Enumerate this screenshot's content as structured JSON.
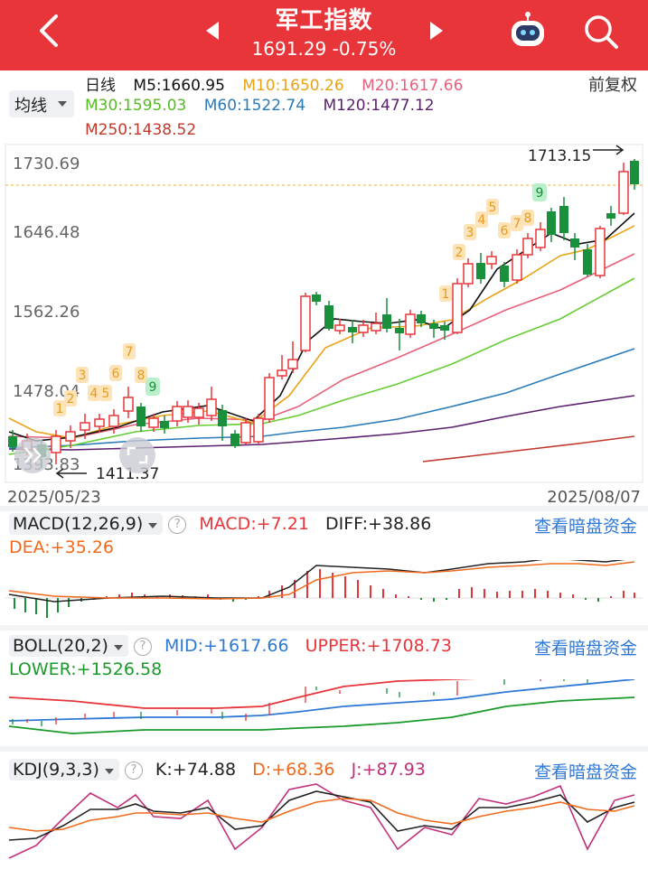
{
  "header": {
    "title": "军工指数",
    "price": "1691.29",
    "change_pct": "-0.75%"
  },
  "ma": {
    "period_label": "日线",
    "type_label": "均线",
    "adjust_label": "前复权",
    "m5": "M5:1660.95",
    "m10": "M10:1650.26",
    "m20": "M20:1617.66",
    "m30": "M30:1595.03",
    "m60": "M60:1522.74",
    "m120": "M120:1477.12",
    "m250": "M250:1438.52",
    "colors": {
      "m5": "#111111",
      "m10": "#e8a317",
      "m20": "#e8607a",
      "m30": "#66cc33",
      "m60": "#2b7bb9",
      "m120": "#5b1f6e",
      "m250": "#c0392b"
    }
  },
  "kline": {
    "y_ticks": [
      "1730.69",
      "1646.48",
      "1562.26",
      "1478.04",
      "1393.83"
    ],
    "high_label": "1713.15",
    "low_label": "1411.37",
    "start_date": "2025/05/23",
    "end_date": "2025/08/07",
    "td_labels_a": [
      "1",
      "2",
      "3",
      "4",
      "5",
      "6",
      "7",
      "8",
      "9"
    ],
    "td_labels_b": [
      "1",
      "2",
      "3",
      "4",
      "5",
      "6",
      "7",
      "8",
      "9"
    ]
  },
  "macd": {
    "name": "MACD(12,26,9)",
    "macd": "MACD:+7.21",
    "diff": "DIFF:+38.86",
    "dea": "DEA:+35.26",
    "link": "查看暗盘资金"
  },
  "boll": {
    "name": "BOLL(20,2)",
    "mid": "MID:+1617.66",
    "upper": "UPPER:+1708.73",
    "lower": "LOWER:+1526.58",
    "link": "查看暗盘资金"
  },
  "kdj": {
    "name": "KDJ(9,3,3)",
    "k": "K:+74.88",
    "d": "D:+68.36",
    "j": "J:+87.93",
    "link": "查看暗盘资金"
  }
}
